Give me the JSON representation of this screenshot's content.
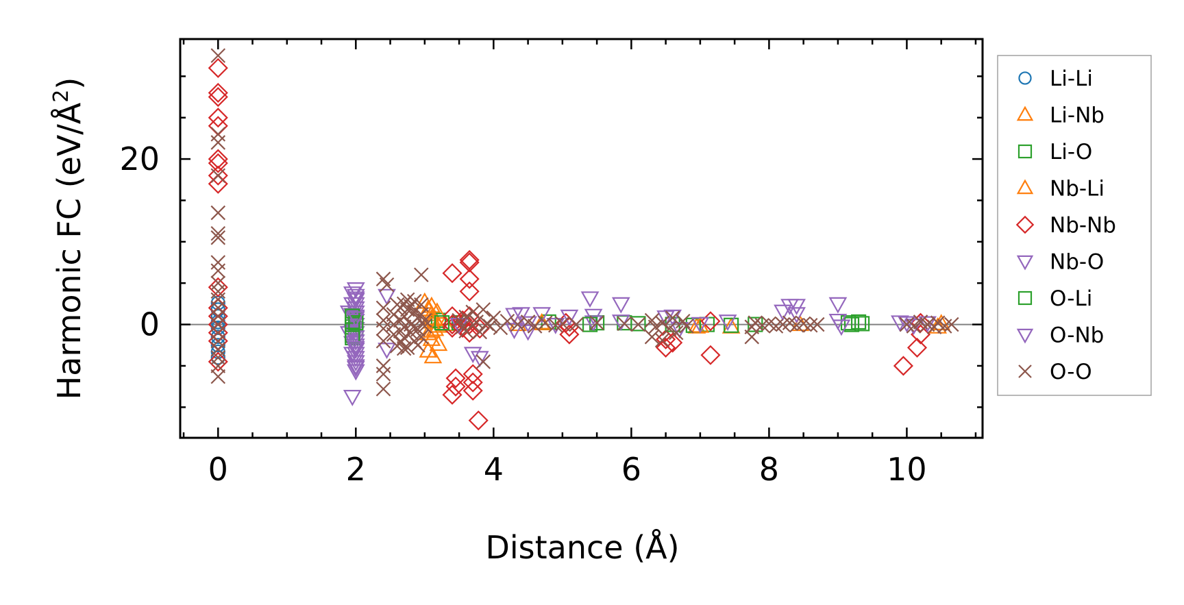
{
  "chart_data": {
    "type": "scatter",
    "title": "",
    "xlabel": "Distance (Å)",
    "ylabel_main": "Harmonic FC (eV/Å",
    "ylabel_sup": "2",
    "ylabel_close": ")",
    "xlim": [
      -0.55,
      11.1
    ],
    "ylim": [
      -13.7,
      34.5
    ],
    "xticks": [
      0,
      2,
      4,
      6,
      8,
      10
    ],
    "xtick_labels": [
      "0",
      "2",
      "4",
      "6",
      "8",
      "10"
    ],
    "yticks": [
      0,
      20
    ],
    "ytick_labels": [
      "0",
      "20"
    ],
    "x_minor_step": 0.5,
    "y_minor_step": 5,
    "zero_line": true,
    "grid": false,
    "legend_position": "right, outside plot",
    "series": [
      {
        "name": "Li-Li",
        "marker": "circle",
        "color": "#1f77b4",
        "points": [
          [
            0,
            2.6
          ],
          [
            0,
            1.8
          ],
          [
            0,
            1.0
          ],
          [
            0,
            0.3
          ],
          [
            0,
            -0.4
          ],
          [
            0,
            -1.5
          ],
          [
            0,
            -2.5
          ],
          [
            0,
            -3.3
          ],
          [
            0,
            -4.0
          ]
        ]
      },
      {
        "name": "Li-Nb",
        "marker": "triangle-up",
        "color": "#ff7f0e",
        "points": [
          [
            3.1,
            2.2
          ],
          [
            3.1,
            1.2
          ],
          [
            3.1,
            0.3
          ],
          [
            3.1,
            -0.8
          ],
          [
            3.1,
            -1.8
          ],
          [
            3.12,
            -3.9
          ],
          [
            3.05,
            -1.1
          ],
          [
            3.15,
            0.6
          ],
          [
            3.2,
            -0.2
          ],
          [
            3.3,
            0.0
          ],
          [
            4.35,
            0.0
          ],
          [
            4.7,
            0.1
          ],
          [
            6.95,
            -0.3
          ],
          [
            7.45,
            -0.3
          ],
          [
            8.45,
            0.0
          ],
          [
            10.45,
            -0.3
          ],
          [
            10.5,
            0.1
          ]
        ]
      },
      {
        "name": "Li-O",
        "marker": "square",
        "color": "#2ca02c",
        "points": [
          [
            1.95,
            0.8
          ],
          [
            1.95,
            0.3
          ],
          [
            1.95,
            -0.3
          ],
          [
            1.95,
            -1.0
          ],
          [
            1.95,
            -1.6
          ],
          [
            2.0,
            -0.5
          ],
          [
            2.0,
            0.5
          ],
          [
            3.2,
            0.5
          ],
          [
            3.5,
            0.2
          ],
          [
            4.8,
            0.3
          ],
          [
            5.5,
            0.2
          ],
          [
            5.9,
            0.2
          ],
          [
            6.1,
            0.1
          ],
          [
            6.9,
            -0.1
          ],
          [
            7.1,
            0.0
          ],
          [
            7.45,
            -0.1
          ],
          [
            7.8,
            0.0
          ],
          [
            9.15,
            0.2
          ],
          [
            9.35,
            0.1
          ]
        ]
      },
      {
        "name": "Nb-Li",
        "marker": "triangle-up",
        "color": "#ff7f0e",
        "points": [
          [
            3.0,
            2.7
          ],
          [
            3.05,
            1.8
          ],
          [
            3.1,
            0.7
          ],
          [
            3.15,
            -0.6
          ],
          [
            3.2,
            -2.4
          ],
          [
            3.05,
            -3.2
          ],
          [
            3.18,
            1.5
          ],
          [
            4.7,
            0.2
          ],
          [
            7.0,
            -0.2
          ]
        ]
      },
      {
        "name": "Nb-Nb",
        "marker": "diamond",
        "color": "#d62728",
        "points": [
          [
            0,
            31
          ],
          [
            0,
            28
          ],
          [
            0,
            27.5
          ],
          [
            0,
            25
          ],
          [
            0,
            24
          ],
          [
            0,
            20
          ],
          [
            0,
            19.5
          ],
          [
            0,
            18
          ],
          [
            0,
            17
          ],
          [
            0,
            4.5
          ],
          [
            0,
            2
          ],
          [
            0,
            1
          ],
          [
            0,
            0
          ],
          [
            0,
            -1
          ],
          [
            0,
            -2
          ],
          [
            0,
            -4.5
          ],
          [
            3.4,
            6.2
          ],
          [
            3.4,
            1.0
          ],
          [
            3.4,
            0.0
          ],
          [
            3.4,
            -0.4
          ],
          [
            3.45,
            -6.5
          ],
          [
            3.45,
            -7.5
          ],
          [
            3.4,
            -8.5
          ],
          [
            3.55,
            0.5
          ],
          [
            3.55,
            -0.4
          ],
          [
            3.65,
            7.8
          ],
          [
            3.65,
            7.5
          ],
          [
            3.65,
            5.5
          ],
          [
            3.65,
            4.0
          ],
          [
            3.65,
            1.0
          ],
          [
            3.65,
            0.0
          ],
          [
            3.65,
            -1.0
          ],
          [
            3.7,
            -6.0
          ],
          [
            3.7,
            -7.0
          ],
          [
            3.7,
            -8.0
          ],
          [
            3.78,
            -11.6
          ],
          [
            3.8,
            -0.5
          ],
          [
            5.05,
            0.2
          ],
          [
            5.1,
            -0.3
          ],
          [
            5.1,
            -1.2
          ],
          [
            6.5,
            -1.8
          ],
          [
            6.5,
            -2.8
          ],
          [
            6.6,
            -2.2
          ],
          [
            7.15,
            0.4
          ],
          [
            7.15,
            -3.7
          ],
          [
            9.95,
            -5.0
          ],
          [
            10.15,
            -2.8
          ],
          [
            10.2,
            -1.2
          ],
          [
            10.2,
            0.2
          ]
        ]
      },
      {
        "name": "Nb-O",
        "marker": "triangle-down",
        "color": "#9467bd",
        "points": [
          [
            1.95,
            -8.7
          ],
          [
            2.0,
            -5.6
          ],
          [
            2.0,
            -5.0
          ],
          [
            2.0,
            -4.5
          ],
          [
            2.0,
            -4.0
          ],
          [
            2.0,
            -3.5
          ],
          [
            2.0,
            -3.0
          ],
          [
            2.0,
            -2.5
          ],
          [
            2.0,
            -2.0
          ],
          [
            2.0,
            -1.5
          ],
          [
            2.0,
            -1.0
          ],
          [
            2.0,
            -0.5
          ],
          [
            2.0,
            0.0
          ],
          [
            2.0,
            0.5
          ],
          [
            2.0,
            1.0
          ],
          [
            2.0,
            1.5
          ],
          [
            2.0,
            2.0
          ],
          [
            2.0,
            2.5
          ],
          [
            2.0,
            3.0
          ],
          [
            2.0,
            3.5
          ],
          [
            2.0,
            4.3
          ],
          [
            1.95,
            3.8
          ],
          [
            1.95,
            2.5
          ],
          [
            1.95,
            1.2
          ],
          [
            1.95,
            -0.8
          ],
          [
            1.95,
            -2.2
          ],
          [
            1.95,
            -3.5
          ],
          [
            1.9,
            -1.0
          ],
          [
            1.9,
            1.5
          ],
          [
            2.45,
            3.5
          ],
          [
            2.45,
            -3.0
          ],
          [
            3.8,
            -4.0
          ],
          [
            3.7,
            -3.5
          ],
          [
            4.3,
            1.2
          ],
          [
            4.3,
            -0.6
          ],
          [
            4.4,
            1.3
          ],
          [
            4.5,
            0.2
          ],
          [
            4.5,
            -0.8
          ],
          [
            4.7,
            1.3
          ],
          [
            4.9,
            0.0
          ],
          [
            5.1,
            1.0
          ],
          [
            5.4,
            3.2
          ],
          [
            5.45,
            1.1
          ],
          [
            5.45,
            0.3
          ],
          [
            5.85,
            2.5
          ],
          [
            5.85,
            0.4
          ]
        ]
      },
      {
        "name": "O-Li",
        "marker": "square",
        "color": "#2ca02c",
        "points": [
          [
            1.95,
            0.0
          ],
          [
            1.95,
            -1.3
          ],
          [
            1.95,
            1.0
          ],
          [
            2.0,
            0.2
          ],
          [
            3.25,
            0.2
          ],
          [
            5.4,
            0.0
          ],
          [
            6.6,
            0.0
          ],
          [
            9.2,
            0.0
          ],
          [
            9.3,
            0.3
          ]
        ]
      },
      {
        "name": "O-Nb",
        "marker": "triangle-down",
        "color": "#9467bd",
        "points": [
          [
            2.0,
            -5.2
          ],
          [
            2.0,
            -2.8
          ],
          [
            2.0,
            0.8
          ],
          [
            2.0,
            3.2
          ],
          [
            3.5,
            0.0
          ],
          [
            6.5,
            0.9
          ],
          [
            6.6,
            1.0
          ],
          [
            6.7,
            -0.5
          ],
          [
            7.0,
            0.1
          ],
          [
            7.4,
            0.4
          ],
          [
            8.2,
            1.6
          ],
          [
            8.3,
            2.3
          ],
          [
            8.4,
            2.3
          ],
          [
            8.4,
            1.3
          ],
          [
            9.0,
            2.5
          ],
          [
            9.0,
            0.5
          ],
          [
            9.05,
            -0.2
          ],
          [
            9.9,
            0.3
          ],
          [
            10.0,
            0.2
          ],
          [
            10.1,
            -0.1
          ],
          [
            10.3,
            0.2
          ]
        ]
      },
      {
        "name": "O-O",
        "marker": "x",
        "color": "#8c564b",
        "points": [
          [
            0,
            32.5
          ],
          [
            0,
            23
          ],
          [
            0,
            22
          ],
          [
            0,
            18
          ],
          [
            0,
            13.5
          ],
          [
            0,
            11
          ],
          [
            0,
            10.5
          ],
          [
            0,
            7.5
          ],
          [
            0,
            6.5
          ],
          [
            0,
            5.0
          ],
          [
            0,
            4.0
          ],
          [
            0,
            3.0
          ],
          [
            0,
            2.0
          ],
          [
            0,
            1.0
          ],
          [
            0,
            0.0
          ],
          [
            0,
            -1.0
          ],
          [
            0,
            -2.0
          ],
          [
            0,
            -3.0
          ],
          [
            0,
            -4.0
          ],
          [
            0,
            -5.0
          ],
          [
            0,
            -6.3
          ],
          [
            2.4,
            5.5
          ],
          [
            2.4,
            2.0
          ],
          [
            2.4,
            0.5
          ],
          [
            2.4,
            -0.5
          ],
          [
            2.4,
            -2.0
          ],
          [
            2.4,
            -5.0
          ],
          [
            2.4,
            -6.0
          ],
          [
            2.4,
            -7.8
          ],
          [
            2.45,
            4.8
          ],
          [
            2.55,
            0.0
          ],
          [
            2.55,
            1.2
          ],
          [
            2.55,
            -1.2
          ],
          [
            2.65,
            2.0
          ],
          [
            2.65,
            0.5
          ],
          [
            2.65,
            -0.8
          ],
          [
            2.65,
            -2.2
          ],
          [
            2.7,
            2.5
          ],
          [
            2.7,
            1.0
          ],
          [
            2.7,
            -0.3
          ],
          [
            2.7,
            -1.6
          ],
          [
            2.75,
            3.0
          ],
          [
            2.75,
            -2.8
          ],
          [
            2.8,
            2.2
          ],
          [
            2.8,
            0.0
          ],
          [
            2.8,
            -1.0
          ],
          [
            2.85,
            2.8
          ],
          [
            2.85,
            1.5
          ],
          [
            2.85,
            -2.0
          ],
          [
            2.9,
            0.8
          ],
          [
            2.9,
            -0.6
          ],
          [
            2.9,
            -2.5
          ],
          [
            2.95,
            2.4
          ],
          [
            2.95,
            1.2
          ],
          [
            2.95,
            -1.5
          ],
          [
            3.0,
            0.5
          ],
          [
            3.0,
            -0.2
          ],
          [
            2.6,
            -2.6
          ],
          [
            2.75,
            1.8
          ],
          [
            2.85,
            -0.2
          ],
          [
            2.6,
            2.4
          ],
          [
            2.95,
            6.0
          ],
          [
            2.7,
            -2.9
          ],
          [
            3.5,
            0.5
          ],
          [
            3.55,
            -0.3
          ],
          [
            3.6,
            0.9
          ],
          [
            3.6,
            -0.8
          ],
          [
            3.7,
            1.5
          ],
          [
            3.75,
            0.3
          ],
          [
            3.8,
            -0.9
          ],
          [
            3.85,
            1.8
          ],
          [
            3.9,
            0.1
          ],
          [
            3.95,
            -0.2
          ],
          [
            4.0,
            0.8
          ],
          [
            4.1,
            -0.4
          ],
          [
            4.2,
            0.4
          ],
          [
            3.85,
            -4.5
          ],
          [
            4.35,
            0.0
          ],
          [
            4.5,
            0.3
          ],
          [
            4.6,
            -0.2
          ],
          [
            4.75,
            0.2
          ],
          [
            4.9,
            -0.1
          ],
          [
            5.0,
            0.1
          ],
          [
            5.2,
            0.0
          ],
          [
            5.5,
            0.2
          ],
          [
            5.9,
            0.1
          ],
          [
            6.1,
            0.0
          ],
          [
            6.3,
            0.5
          ],
          [
            6.35,
            -0.3
          ],
          [
            6.45,
            0.2
          ],
          [
            6.55,
            -0.5
          ],
          [
            6.6,
            0.8
          ],
          [
            6.65,
            -1.0
          ],
          [
            6.75,
            0.4
          ],
          [
            6.8,
            -0.2
          ],
          [
            6.3,
            -1.5
          ],
          [
            6.45,
            -1.9
          ],
          [
            7.75,
            -0.3
          ],
          [
            7.8,
            0.2
          ],
          [
            7.9,
            -0.1
          ],
          [
            8.0,
            0.1
          ],
          [
            8.1,
            -0.2
          ],
          [
            8.2,
            0.0
          ],
          [
            8.3,
            0.2
          ],
          [
            8.4,
            -0.1
          ],
          [
            8.5,
            0.1
          ],
          [
            8.6,
            -0.1
          ],
          [
            8.7,
            0.0
          ],
          [
            7.75,
            -1.5
          ],
          [
            10.0,
            0.0
          ],
          [
            10.1,
            -0.2
          ],
          [
            10.2,
            0.3
          ],
          [
            10.3,
            0.0
          ],
          [
            10.4,
            -0.3
          ],
          [
            10.45,
            0.2
          ],
          [
            10.55,
            -0.2
          ],
          [
            10.65,
            0.0
          ]
        ]
      }
    ]
  }
}
